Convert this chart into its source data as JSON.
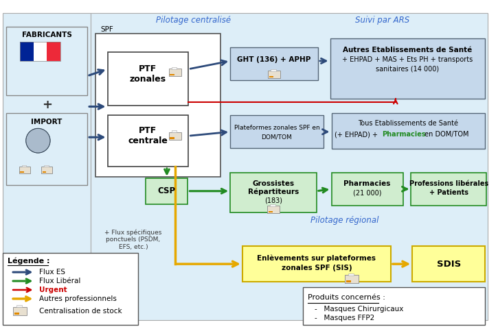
{
  "flux_es_color": "#2d4a7a",
  "flux_liberal_color": "#228B22",
  "flux_urgent_color": "#cc0000",
  "flux_autres_color": "#e6a800",
  "title_pilotage_centralise": "Pilotage centralisé",
  "title_pilotage_regional": "Pilotage régional",
  "title_suivi_ars": "Suivi par ARS",
  "bg_main": "#ddeef8",
  "bg_left": "#ddeef8",
  "box_blue_light": "#c5d8eb",
  "box_green_light": "#d0edcf",
  "box_yellow": "#ffff99",
  "box_white": "#ffffff",
  "border_dark": "#555555",
  "border_green": "#228B22",
  "border_yellow": "#ccaa00"
}
